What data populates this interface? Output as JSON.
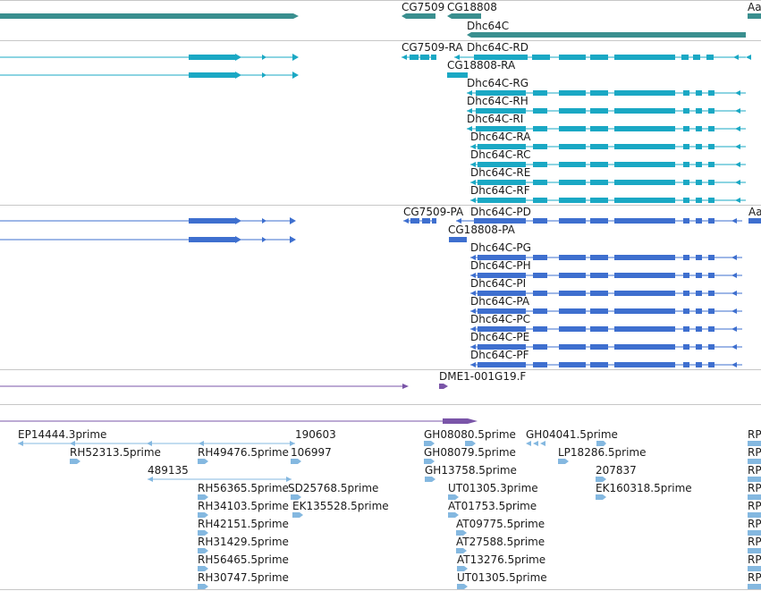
{
  "colors": {
    "gene": "#3a8f8f",
    "mrna": "#1aa8c4",
    "cds": "#3e6fcf",
    "misc": "#7a55a8",
    "est": "#84b8e0",
    "divider": "#c7c7c7"
  },
  "gene_track": {
    "labels": [
      "CG7509",
      "CG18808",
      "Dhc64C",
      "Aa"
    ]
  },
  "transcript_track": {
    "labels": [
      "CG7509-RA",
      "Dhc64C-RD",
      "CG18808-RA",
      "Dhc64C-RG",
      "Dhc64C-RH",
      "Dhc64C-RI",
      "Dhc64C-RA",
      "Dhc64C-RC",
      "Dhc64C-RE",
      "Dhc64C-RF"
    ]
  },
  "protein_track": {
    "labels": [
      "CG7509-PA",
      "Dhc64C-PD",
      "Aa",
      "CG18808-PA",
      "Dhc64C-PG",
      "Dhc64C-PH",
      "Dhc64C-PI",
      "Dhc64C-PA",
      "Dhc64C-PC",
      "Dhc64C-PE",
      "Dhc64C-PF"
    ]
  },
  "misc_track": {
    "labels": [
      "DME1-001G19.F"
    ]
  },
  "est_track": {
    "labels": [
      "EP14444.3prime",
      "190603",
      "GH08080.5prime",
      "GH04041.5prime",
      "RP",
      "RH52313.5prime",
      "RH49476.5prime",
      "106997",
      "GH08079.5prime",
      "LP18286.5prime",
      "RP",
      "489135",
      "GH13758.5prime",
      "207837",
      "RP",
      "RH56365.5prime",
      "SD25768.5prime",
      "UT01305.3prime",
      "EK160318.5prime",
      "RP",
      "RH34103.5prime",
      "EK135528.5prime",
      "AT01753.5prime",
      "RP",
      "RH42151.5prime",
      "AT09775.5prime",
      "RP",
      "RH31429.5prime",
      "AT27588.5prime",
      "RP",
      "RH56465.5prime",
      "AT13276.5prime",
      "RP",
      "RH30747.5prime",
      "UT01305.5prime",
      "RP"
    ]
  }
}
